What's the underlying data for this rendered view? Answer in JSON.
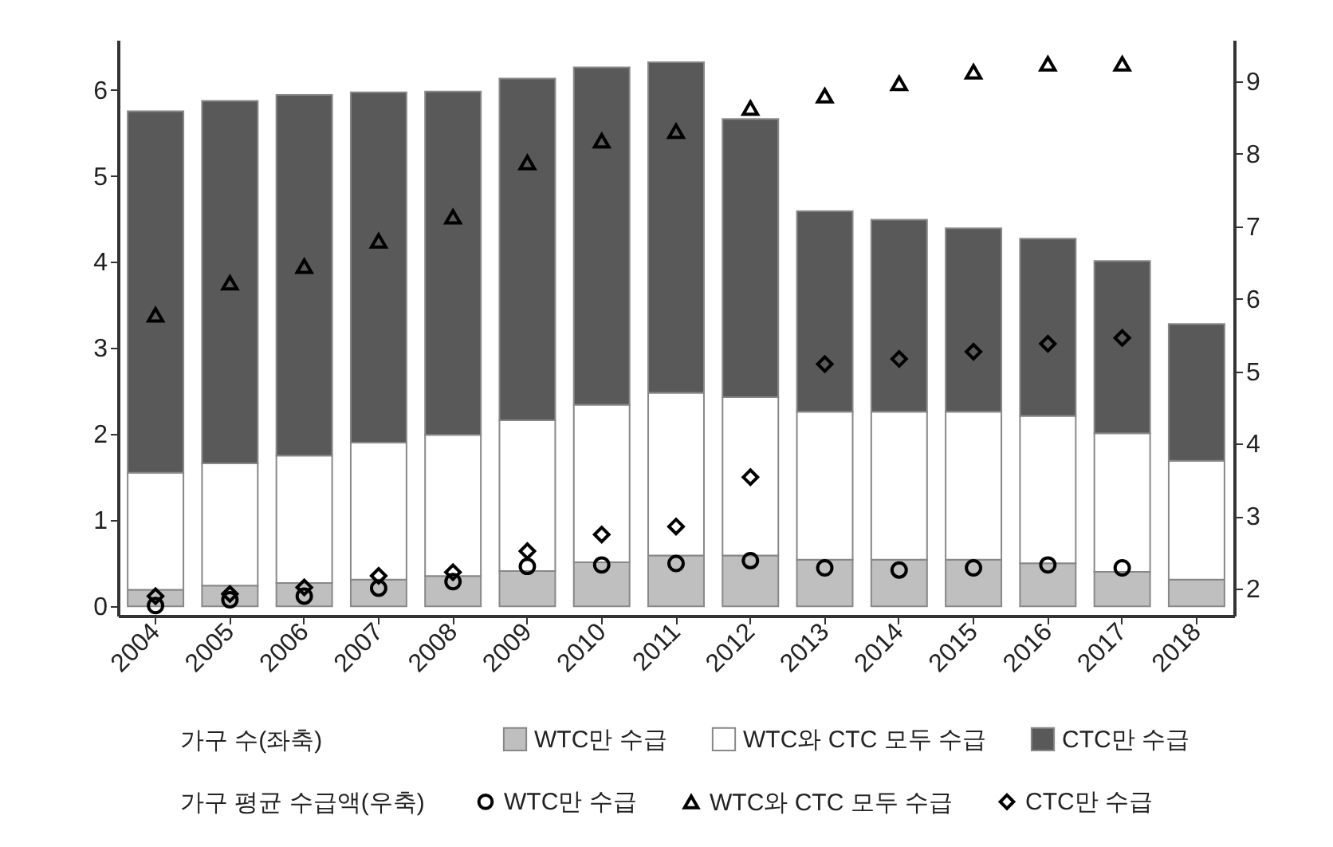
{
  "chart_data": {
    "type": "bar",
    "stacked": true,
    "categories": [
      "2004",
      "2005",
      "2006",
      "2007",
      "2008",
      "2009",
      "2010",
      "2011",
      "2012",
      "2013",
      "2014",
      "2015",
      "2016",
      "2017",
      "2018"
    ],
    "series": [
      {
        "name": "WTC만 수급",
        "color": "#bfbfbf",
        "values": [
          0.19,
          0.24,
          0.27,
          0.31,
          0.35,
          0.41,
          0.51,
          0.59,
          0.59,
          0.54,
          0.54,
          0.54,
          0.5,
          0.4,
          0.31
        ]
      },
      {
        "name": "WTC와 CTC 모두 수급",
        "color": "#ffffff",
        "values": [
          1.36,
          1.42,
          1.48,
          1.59,
          1.64,
          1.75,
          1.83,
          1.89,
          1.84,
          1.72,
          1.72,
          1.72,
          1.71,
          1.61,
          1.38
        ]
      },
      {
        "name": "CTC만 수급",
        "color": "#595959",
        "values": [
          4.2,
          4.21,
          4.19,
          4.07,
          3.99,
          3.97,
          3.92,
          3.84,
          3.23,
          2.33,
          2.23,
          2.13,
          2.06,
          2.0,
          1.59
        ]
      },
      {
        "name": "WTC만 수급",
        "type": "scatter",
        "axis": "y2",
        "marker": "circle",
        "color": "#000000",
        "values": [
          1.77,
          1.85,
          1.9,
          2.01,
          2.1,
          2.31,
          2.33,
          2.35,
          2.39,
          2.29,
          2.26,
          2.29,
          2.33,
          2.29,
          null
        ]
      },
      {
        "name": "WTC와 CTC 모두 수급",
        "type": "scatter",
        "axis": "y2",
        "marker": "triangle",
        "color": "#000000",
        "values": [
          5.78,
          6.22,
          6.45,
          6.8,
          7.13,
          7.88,
          8.18,
          8.31,
          8.63,
          8.8,
          8.97,
          9.13,
          9.24,
          9.24,
          null
        ]
      },
      {
        "name": "CTC만 수급",
        "type": "scatter",
        "axis": "y2",
        "marker": "diamond",
        "color": "#000000",
        "values": [
          1.9,
          1.93,
          2.02,
          2.18,
          2.23,
          2.52,
          2.75,
          2.86,
          3.54,
          5.1,
          5.17,
          5.27,
          5.38,
          5.46,
          null
        ]
      }
    ],
    "ylim": [
      -0.11,
      6.58
    ],
    "yticks": [
      0,
      1,
      2,
      3,
      4,
      5,
      6
    ],
    "y2lim": [
      1.63,
      9.57
    ],
    "y2ticks": [
      2,
      3,
      4,
      5,
      6,
      7,
      8,
      9
    ],
    "annotations": [
      "가구 수(좌축)",
      "가구 평균 수급액(우축)"
    ],
    "legend": "bottom",
    "grid": false
  }
}
